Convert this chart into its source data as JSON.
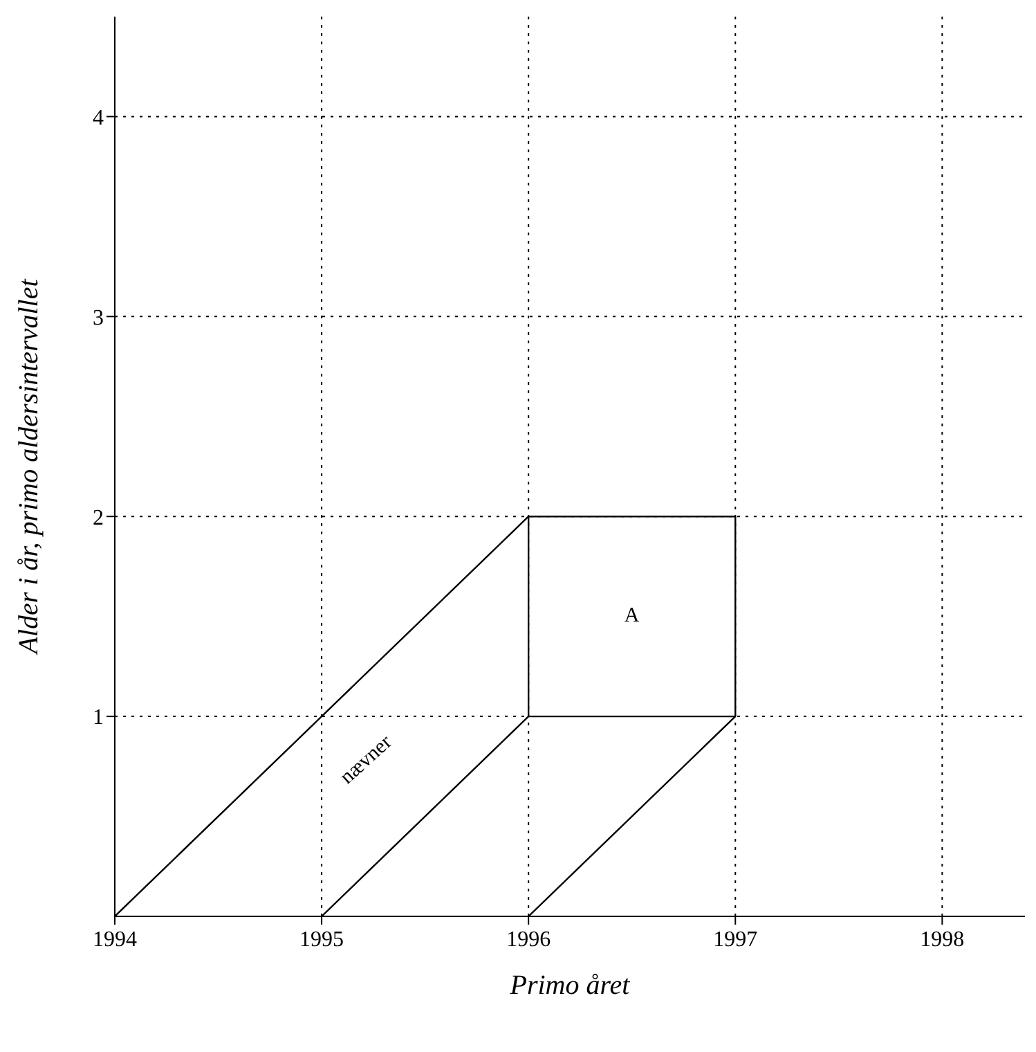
{
  "chart_data": {
    "type": "line",
    "xlabel": "Primo året",
    "ylabel": "Alder i år, primo aldersintervallet",
    "xlim": [
      1994,
      1998.4
    ],
    "ylim": [
      0,
      4.5
    ],
    "xticks": [
      1994,
      1995,
      1996,
      1997,
      1998
    ],
    "yticks": [
      1,
      2,
      3,
      4
    ],
    "grid": true,
    "marker": "none",
    "line_style": "solid",
    "series": [
      {
        "color": "#000000",
        "x": [
          1994,
          1996,
          1997,
          1997
        ],
        "values": [
          0,
          2,
          2,
          1
        ]
      },
      {
        "color": "#000000",
        "x": [
          1995,
          1996,
          1997
        ],
        "values": [
          0,
          1,
          1
        ]
      },
      {
        "color": "#000000",
        "x": [
          1996,
          1997
        ],
        "values": [
          0,
          1
        ]
      },
      {
        "color": "#000000",
        "x": [
          1996,
          1996
        ],
        "values": [
          1,
          2
        ]
      }
    ],
    "annotations": [
      "A",
      "nævner"
    ]
  }
}
